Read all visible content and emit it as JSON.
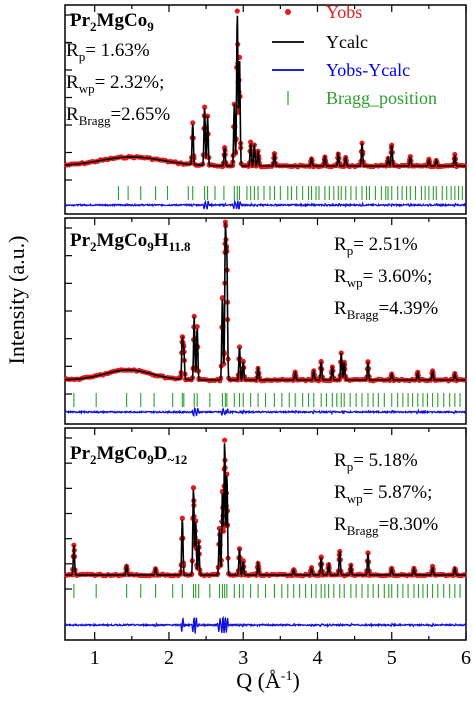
{
  "chart_data": {
    "type": "scatter",
    "xlabel": "Q (Å-1)",
    "ylabel": "Intensity (a.u.)",
    "xlim": [
      0.6,
      6.0
    ],
    "x_ticks": [
      "1",
      "2",
      "3",
      "4",
      "5",
      "6"
    ],
    "legend": {
      "placement": "top-right",
      "entries": [
        {
          "name": "Yobs",
          "color": "#e41a1c"
        },
        {
          "name": "Ycalc",
          "color": "#000000"
        },
        {
          "name": "Yobs-Ycalc",
          "color": "#0000ee"
        },
        {
          "name": "Bragg_position",
          "color": "#2e9e2e"
        }
      ]
    },
    "colors": {
      "obs": "#e41a1c",
      "calc": "#000000",
      "diff": "#1010dd",
      "bragg": "#2e9e2e"
    },
    "panels": [
      {
        "formula": {
          "parts": [
            "Pr",
            "2",
            "MgCo",
            "9"
          ]
        },
        "stats": [
          {
            "main": "R",
            "sub": "p",
            "value": "= 1.63%"
          },
          {
            "main": "R",
            "sub": "wp",
            "value": "= 2.32%;"
          },
          {
            "main": "R",
            "sub": "Bragg",
            "value": "=2.65%"
          }
        ],
        "peaks": [
          {
            "q": 2.32,
            "h": 0.27
          },
          {
            "q": 2.48,
            "h": 0.38
          },
          {
            "q": 2.52,
            "h": 0.32
          },
          {
            "q": 2.75,
            "h": 0.12
          },
          {
            "q": 2.88,
            "h": 0.4
          },
          {
            "q": 2.92,
            "h": 1.0
          },
          {
            "q": 2.95,
            "h": 0.7
          },
          {
            "q": 3.1,
            "h": 0.15
          },
          {
            "q": 3.15,
            "h": 0.14
          },
          {
            "q": 3.2,
            "h": 0.1
          },
          {
            "q": 3.42,
            "h": 0.08
          },
          {
            "q": 3.92,
            "h": 0.05
          },
          {
            "q": 4.1,
            "h": 0.06
          },
          {
            "q": 4.28,
            "h": 0.08
          },
          {
            "q": 4.38,
            "h": 0.06
          },
          {
            "q": 4.6,
            "h": 0.15
          },
          {
            "q": 4.95,
            "h": 0.05
          },
          {
            "q": 5.0,
            "h": 0.14
          },
          {
            "q": 5.25,
            "h": 0.06
          },
          {
            "q": 5.5,
            "h": 0.04
          },
          {
            "q": 5.6,
            "h": 0.04
          },
          {
            "q": 5.85,
            "h": 0.07
          }
        ],
        "bragg": [
          1.32,
          1.45,
          1.62,
          1.82,
          1.98,
          2.26,
          2.32,
          2.48,
          2.52,
          2.62,
          2.74,
          2.88,
          2.92,
          2.95,
          3.05,
          3.1,
          3.15,
          3.2,
          3.28,
          3.36,
          3.42,
          3.5,
          3.6,
          3.65,
          3.72,
          3.8,
          3.88,
          3.92,
          3.98,
          4.02,
          4.1,
          4.16,
          4.22,
          4.28,
          4.32,
          4.38,
          4.45,
          4.52,
          4.6,
          4.66,
          4.7,
          4.78,
          4.86,
          4.92,
          4.95,
          5.0,
          5.08,
          5.14,
          5.2,
          5.25,
          5.32,
          5.4,
          5.45,
          5.5,
          5.56,
          5.6,
          5.68,
          5.74,
          5.8,
          5.85,
          5.9,
          5.95
        ]
      },
      {
        "formula": {
          "parts": [
            "Pr",
            "2",
            "MgCo",
            "9",
            "H",
            "11.8"
          ]
        },
        "stats": [
          {
            "main": "R",
            "sub": "p",
            "value": "= 2.51%"
          },
          {
            "main": "R",
            "sub": "wp",
            "value": "= 3.60%;"
          },
          {
            "main": "R",
            "sub": "Bragg",
            "value": "=4.39%"
          }
        ],
        "peaks": [
          {
            "q": 2.18,
            "h": 0.27
          },
          {
            "q": 2.2,
            "h": 0.2
          },
          {
            "q": 2.34,
            "h": 0.42
          },
          {
            "q": 2.38,
            "h": 0.35
          },
          {
            "q": 2.72,
            "h": 0.55
          },
          {
            "q": 2.76,
            "h": 1.0
          },
          {
            "q": 2.78,
            "h": 0.8
          },
          {
            "q": 2.95,
            "h": 0.22
          },
          {
            "q": 3.0,
            "h": 0.12
          },
          {
            "q": 3.2,
            "h": 0.08
          },
          {
            "q": 3.7,
            "h": 0.05
          },
          {
            "q": 3.95,
            "h": 0.06
          },
          {
            "q": 4.05,
            "h": 0.12
          },
          {
            "q": 4.2,
            "h": 0.09
          },
          {
            "q": 4.32,
            "h": 0.18
          },
          {
            "q": 4.36,
            "h": 0.12
          },
          {
            "q": 4.68,
            "h": 0.12
          },
          {
            "q": 5.0,
            "h": 0.04
          },
          {
            "q": 5.35,
            "h": 0.05
          },
          {
            "q": 5.55,
            "h": 0.06
          },
          {
            "q": 5.85,
            "h": 0.04
          }
        ],
        "bragg": [
          0.72,
          1.02,
          1.43,
          1.62,
          1.8,
          2.05,
          2.18,
          2.2,
          2.34,
          2.38,
          2.55,
          2.72,
          2.76,
          2.78,
          2.88,
          2.95,
          3.0,
          3.1,
          3.2,
          3.3,
          3.42,
          3.52,
          3.62,
          3.7,
          3.8,
          3.88,
          3.95,
          4.05,
          4.12,
          4.2,
          4.26,
          4.32,
          4.36,
          4.44,
          4.52,
          4.6,
          4.68,
          4.75,
          4.82,
          4.9,
          5.0,
          5.08,
          5.15,
          5.22,
          5.28,
          5.35,
          5.42,
          5.48,
          5.55,
          5.62,
          5.7,
          5.78,
          5.85,
          5.92
        ]
      },
      {
        "formula": {
          "parts": [
            "Pr",
            "2",
            "MgCo",
            "9",
            "D",
            "~12"
          ]
        },
        "stats": [
          {
            "main": "R",
            "sub": "p",
            "value": "= 5.18%"
          },
          {
            "main": "R",
            "sub": "wp",
            "value": "= 5.87%;"
          },
          {
            "main": "R",
            "sub": "Bragg",
            "value": "=8.30%"
          }
        ],
        "peaks": [
          {
            "q": 0.72,
            "h": 0.22
          },
          {
            "q": 1.43,
            "h": 0.07
          },
          {
            "q": 1.82,
            "h": 0.05
          },
          {
            "q": 2.18,
            "h": 0.42
          },
          {
            "q": 2.33,
            "h": 0.65
          },
          {
            "q": 2.36,
            "h": 0.4
          },
          {
            "q": 2.4,
            "h": 0.25
          },
          {
            "q": 2.68,
            "h": 0.35
          },
          {
            "q": 2.72,
            "h": 0.62
          },
          {
            "q": 2.75,
            "h": 1.0
          },
          {
            "q": 2.78,
            "h": 0.75
          },
          {
            "q": 2.95,
            "h": 0.2
          },
          {
            "q": 3.0,
            "h": 0.1
          },
          {
            "q": 3.2,
            "h": 0.09
          },
          {
            "q": 3.68,
            "h": 0.04
          },
          {
            "q": 3.92,
            "h": 0.05
          },
          {
            "q": 4.05,
            "h": 0.13
          },
          {
            "q": 4.15,
            "h": 0.08
          },
          {
            "q": 4.3,
            "h": 0.18
          },
          {
            "q": 4.45,
            "h": 0.07
          },
          {
            "q": 4.68,
            "h": 0.16
          },
          {
            "q": 5.0,
            "h": 0.05
          },
          {
            "q": 5.3,
            "h": 0.05
          },
          {
            "q": 5.55,
            "h": 0.06
          },
          {
            "q": 5.85,
            "h": 0.05
          }
        ],
        "bragg": [
          0.72,
          1.02,
          1.43,
          1.62,
          1.82,
          2.05,
          2.18,
          2.33,
          2.36,
          2.4,
          2.55,
          2.68,
          2.72,
          2.75,
          2.78,
          2.88,
          2.95,
          3.0,
          3.1,
          3.2,
          3.3,
          3.42,
          3.52,
          3.6,
          3.68,
          3.76,
          3.84,
          3.92,
          3.98,
          4.05,
          4.1,
          4.15,
          4.22,
          4.3,
          4.36,
          4.45,
          4.52,
          4.6,
          4.68,
          4.75,
          4.82,
          4.9,
          4.96,
          5.0,
          5.08,
          5.15,
          5.22,
          5.3,
          5.36,
          5.42,
          5.48,
          5.55,
          5.62,
          5.7,
          5.78,
          5.85,
          5.92
        ]
      }
    ]
  }
}
